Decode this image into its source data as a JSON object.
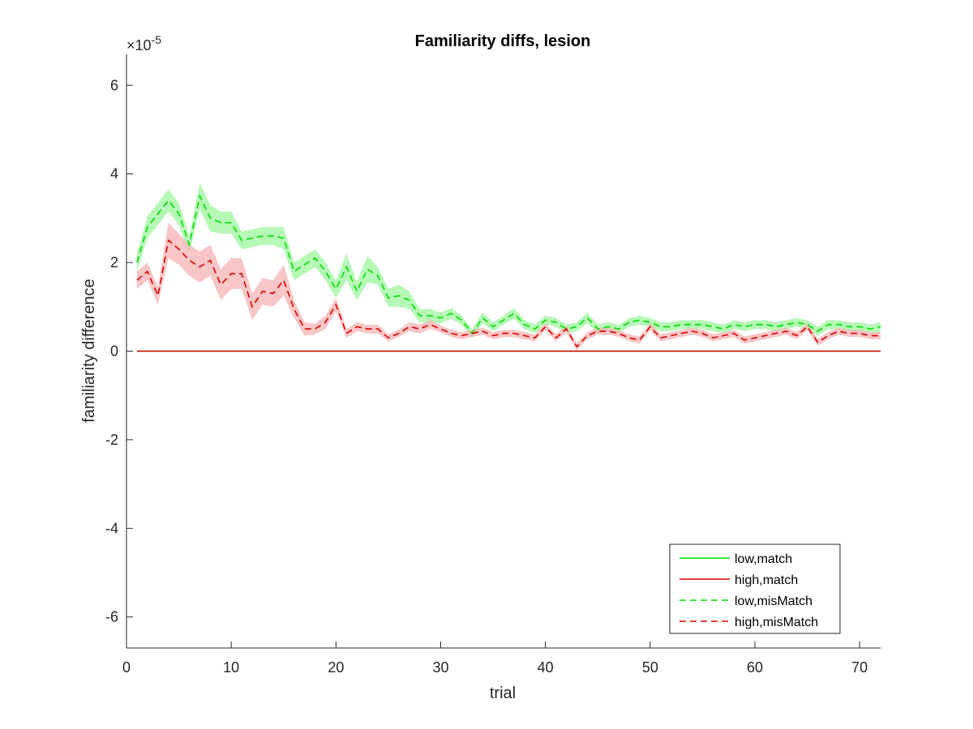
{
  "chart_data": {
    "type": "line",
    "title": "Familiarity diffs, lesion",
    "xlabel": "trial",
    "ylabel": "familiarity difference",
    "exponent_label": "×10",
    "exponent_sup": "-5",
    "xlim": [
      0,
      72
    ],
    "ylim": [
      -6.7,
      6.7
    ],
    "xticks": [
      0,
      10,
      20,
      30,
      40,
      50,
      60,
      70
    ],
    "yticks": [
      -6,
      -4,
      -2,
      0,
      2,
      4,
      6
    ],
    "y_units_scale": "1e-5",
    "legend_position": "bottom-right",
    "x": [
      1,
      2,
      3,
      4,
      5,
      6,
      7,
      8,
      9,
      10,
      11,
      12,
      13,
      14,
      15,
      16,
      17,
      18,
      19,
      20,
      21,
      22,
      23,
      24,
      25,
      26,
      27,
      28,
      29,
      30,
      31,
      32,
      33,
      34,
      35,
      36,
      37,
      38,
      39,
      40,
      41,
      42,
      43,
      44,
      45,
      46,
      47,
      48,
      49,
      50,
      51,
      52,
      53,
      54,
      55,
      56,
      57,
      58,
      59,
      60,
      61,
      62,
      63,
      64,
      65,
      66,
      67,
      68,
      69,
      70,
      71,
      72
    ],
    "series": [
      {
        "name": "low,match",
        "color": "#00dd00",
        "dash": "solid",
        "values": [
          0,
          0,
          0,
          0,
          0,
          0,
          0,
          0,
          0,
          0,
          0,
          0,
          0,
          0,
          0,
          0,
          0,
          0,
          0,
          0,
          0,
          0,
          0,
          0,
          0,
          0,
          0,
          0,
          0,
          0,
          0,
          0,
          0,
          0,
          0,
          0,
          0,
          0,
          0,
          0,
          0,
          0,
          0,
          0,
          0,
          0,
          0,
          0,
          0,
          0,
          0,
          0,
          0,
          0,
          0,
          0,
          0,
          0,
          0,
          0,
          0,
          0,
          0,
          0,
          0,
          0,
          0,
          0,
          0,
          0,
          0,
          0
        ]
      },
      {
        "name": "high,match",
        "color": "#dd0000",
        "dash": "solid",
        "values": [
          0,
          0,
          0,
          0,
          0,
          0,
          0,
          0,
          0,
          0,
          0,
          0,
          0,
          0,
          0,
          0,
          0,
          0,
          0,
          0,
          0,
          0,
          0,
          0,
          0,
          0,
          0,
          0,
          0,
          0,
          0,
          0,
          0,
          0,
          0,
          0,
          0,
          0,
          0,
          0,
          0,
          0,
          0,
          0,
          0,
          0,
          0,
          0,
          0,
          0,
          0,
          0,
          0,
          0,
          0,
          0,
          0,
          0,
          0,
          0,
          0,
          0,
          0,
          0,
          0,
          0,
          0,
          0,
          0,
          0,
          0,
          0
        ]
      },
      {
        "name": "low,misMatch",
        "color": "#00dd00",
        "band_color": "#9ef59e",
        "dash": "dashed",
        "values": [
          2.0,
          2.8,
          3.1,
          3.4,
          3.1,
          2.4,
          3.5,
          3.0,
          2.9,
          2.9,
          2.5,
          2.55,
          2.6,
          2.6,
          2.55,
          1.8,
          1.95,
          2.1,
          1.8,
          1.4,
          1.9,
          1.35,
          1.85,
          1.7,
          1.2,
          1.25,
          1.15,
          0.8,
          0.8,
          0.75,
          0.85,
          0.7,
          0.4,
          0.75,
          0.55,
          0.7,
          0.85,
          0.6,
          0.5,
          0.7,
          0.65,
          0.5,
          0.55,
          0.75,
          0.5,
          0.55,
          0.5,
          0.65,
          0.7,
          0.65,
          0.55,
          0.55,
          0.6,
          0.6,
          0.6,
          0.55,
          0.5,
          0.6,
          0.55,
          0.6,
          0.6,
          0.55,
          0.6,
          0.65,
          0.6,
          0.45,
          0.6,
          0.6,
          0.55,
          0.55,
          0.5,
          0.55
        ],
        "band": [
          0.2,
          0.25,
          0.25,
          0.25,
          0.25,
          0.2,
          0.3,
          0.3,
          0.25,
          0.25,
          0.2,
          0.2,
          0.2,
          0.2,
          0.25,
          0.2,
          0.2,
          0.2,
          0.2,
          0.2,
          0.3,
          0.2,
          0.3,
          0.2,
          0.2,
          0.25,
          0.2,
          0.15,
          0.15,
          0.12,
          0.12,
          0.1,
          0.1,
          0.12,
          0.1,
          0.1,
          0.12,
          0.1,
          0.1,
          0.1,
          0.1,
          0.1,
          0.1,
          0.12,
          0.1,
          0.1,
          0.1,
          0.1,
          0.1,
          0.1,
          0.1,
          0.1,
          0.1,
          0.1,
          0.1,
          0.1,
          0.1,
          0.1,
          0.1,
          0.1,
          0.1,
          0.1,
          0.1,
          0.1,
          0.1,
          0.1,
          0.1,
          0.1,
          0.1,
          0.1,
          0.1,
          0.1
        ]
      },
      {
        "name": "high,misMatch",
        "color": "#dd0000",
        "band_color": "#f5b3b3",
        "dash": "dashed",
        "values": [
          1.6,
          1.8,
          1.25,
          2.5,
          2.3,
          2.05,
          1.9,
          2.05,
          1.5,
          1.75,
          1.75,
          1.0,
          1.35,
          1.3,
          1.6,
          0.95,
          0.5,
          0.5,
          0.65,
          1.05,
          0.4,
          0.55,
          0.5,
          0.5,
          0.3,
          0.4,
          0.55,
          0.5,
          0.6,
          0.5,
          0.4,
          0.35,
          0.4,
          0.45,
          0.35,
          0.4,
          0.4,
          0.35,
          0.3,
          0.55,
          0.3,
          0.5,
          0.1,
          0.35,
          0.45,
          0.45,
          0.4,
          0.3,
          0.25,
          0.55,
          0.3,
          0.35,
          0.4,
          0.45,
          0.4,
          0.3,
          0.35,
          0.4,
          0.25,
          0.3,
          0.35,
          0.4,
          0.45,
          0.35,
          0.55,
          0.2,
          0.35,
          0.45,
          0.4,
          0.4,
          0.35,
          0.35
        ],
        "band": [
          0.2,
          0.2,
          0.2,
          0.4,
          0.35,
          0.35,
          0.35,
          0.35,
          0.35,
          0.35,
          0.35,
          0.3,
          0.3,
          0.3,
          0.35,
          0.2,
          0.15,
          0.12,
          0.15,
          0.15,
          0.1,
          0.1,
          0.1,
          0.1,
          0.08,
          0.08,
          0.1,
          0.1,
          0.1,
          0.08,
          0.08,
          0.08,
          0.08,
          0.08,
          0.08,
          0.08,
          0.08,
          0.08,
          0.08,
          0.08,
          0.08,
          0.08,
          0.08,
          0.08,
          0.08,
          0.08,
          0.08,
          0.08,
          0.08,
          0.08,
          0.08,
          0.08,
          0.08,
          0.08,
          0.08,
          0.08,
          0.08,
          0.08,
          0.08,
          0.08,
          0.08,
          0.08,
          0.08,
          0.08,
          0.08,
          0.08,
          0.08,
          0.08,
          0.08,
          0.08,
          0.08,
          0.08
        ]
      }
    ]
  }
}
